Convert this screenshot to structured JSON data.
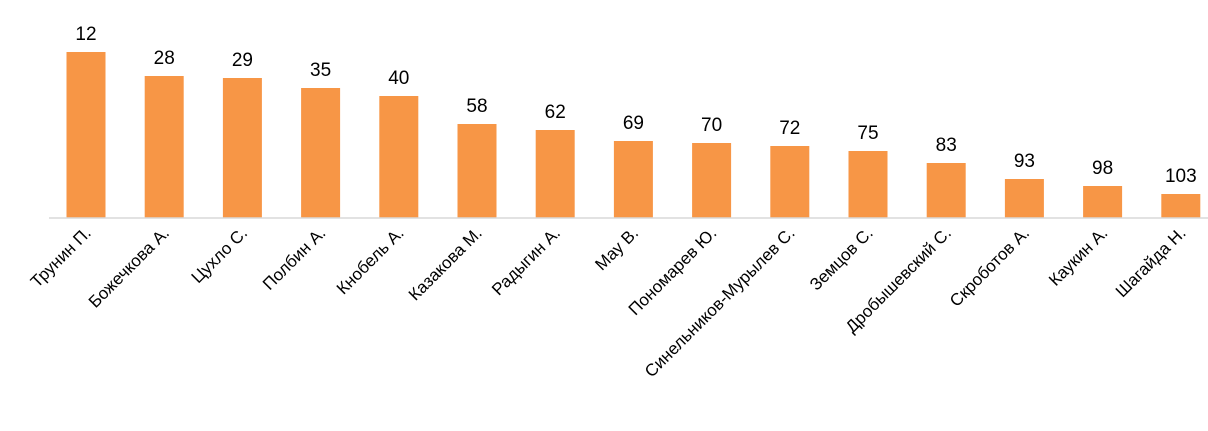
{
  "chart_data": {
    "type": "bar",
    "title": "",
    "xlabel": "",
    "ylabel": "",
    "categories": [
      "Трунин П.",
      "Божечкова А.",
      "Цухло С.",
      "Полбин А.",
      "Кнобель А.",
      "Казакова М.",
      "Радыгин А.",
      "Мау В.",
      "Пономарев Ю.",
      "Синельников-Мурылев С.",
      "Земцов С.",
      "Дробышевский С.",
      "Скроботов А.",
      "Каукин А.",
      "Шагайда Н."
    ],
    "series": [
      {
        "labels": [
          12,
          28,
          29,
          35,
          40,
          58,
          62,
          69,
          70,
          72,
          75,
          83,
          93,
          98,
          103
        ],
        "color": "#F79646"
      }
    ],
    "bar_heights_relative": [
      166,
      142,
      140,
      130,
      122,
      94,
      88,
      77,
      75,
      72,
      67,
      55,
      39,
      32,
      24
    ],
    "grid": false,
    "legend": "none",
    "y_axis_visible": false
  }
}
